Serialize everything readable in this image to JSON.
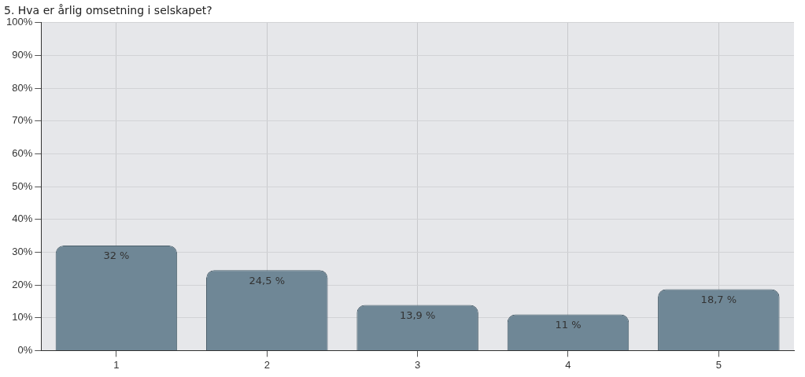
{
  "chart_data": {
    "type": "bar",
    "title": "5. Hva er årlig omsetning i selskapet?",
    "categories": [
      "1",
      "2",
      "3",
      "4",
      "5"
    ],
    "values": [
      32,
      24.5,
      13.9,
      11,
      18.7
    ],
    "value_labels": [
      "32 %",
      "24,5 %",
      "13,9 %",
      "11 %",
      "18,7 %"
    ],
    "color": "#6f8796",
    "ylim": [
      0,
      100
    ],
    "yticks": [
      {
        "value": 0,
        "label": "0%"
      },
      {
        "value": 10,
        "label": "10%"
      },
      {
        "value": 20,
        "label": "20%"
      },
      {
        "value": 30,
        "label": "30%"
      },
      {
        "value": 40,
        "label": "40%"
      },
      {
        "value": 50,
        "label": "50%"
      },
      {
        "value": 60,
        "label": "60%"
      },
      {
        "value": 70,
        "label": "70%"
      },
      {
        "value": 80,
        "label": "80%"
      },
      {
        "value": 90,
        "label": "90%"
      },
      {
        "value": 100,
        "label": "100%"
      }
    ],
    "grid": true,
    "legend": false
  }
}
